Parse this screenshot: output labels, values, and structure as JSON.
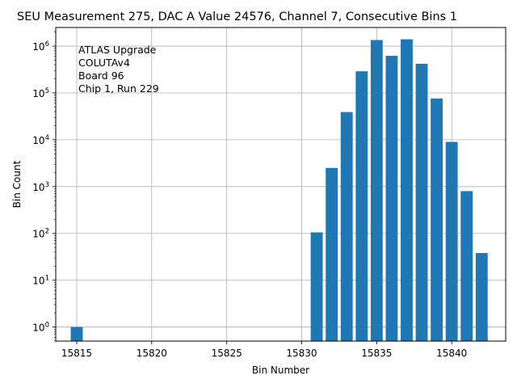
{
  "chart_data": {
    "type": "bar",
    "title": "SEU Measurement 275, DAC A Value 24576, Channel 7, Consecutive Bins 1",
    "xlabel": "Bin Number",
    "ylabel": "Bin Count",
    "yscale": "log",
    "xlim": [
      15813.6,
      15843.6
    ],
    "ylim": [
      0.5,
      2500000
    ],
    "x_ticks": [
      15815,
      15820,
      15825,
      15830,
      15835,
      15840
    ],
    "y_ticks": [
      {
        "value": 1,
        "mantissa": "10",
        "exp": "0"
      },
      {
        "value": 10,
        "mantissa": "10",
        "exp": "1"
      },
      {
        "value": 100,
        "mantissa": "10",
        "exp": "2"
      },
      {
        "value": 1000,
        "mantissa": "10",
        "exp": "3"
      },
      {
        "value": 10000,
        "mantissa": "10",
        "exp": "4"
      },
      {
        "value": 100000,
        "mantissa": "10",
        "exp": "5"
      },
      {
        "value": 1000000,
        "mantissa": "10",
        "exp": "6"
      }
    ],
    "grid": true,
    "bar_color": "#1f77b4",
    "x": [
      15815,
      15831,
      15832,
      15833,
      15834,
      15835,
      15836,
      15837,
      15838,
      15839,
      15840,
      15841,
      15842
    ],
    "values": [
      1,
      105,
      2500,
      39000,
      290000,
      1350000,
      620000,
      1400000,
      420000,
      76000,
      9000,
      800,
      38
    ],
    "annotation": [
      "ATLAS Upgrade",
      "COLUTAv4",
      " Board 96",
      "Chip 1, Run 229"
    ]
  }
}
